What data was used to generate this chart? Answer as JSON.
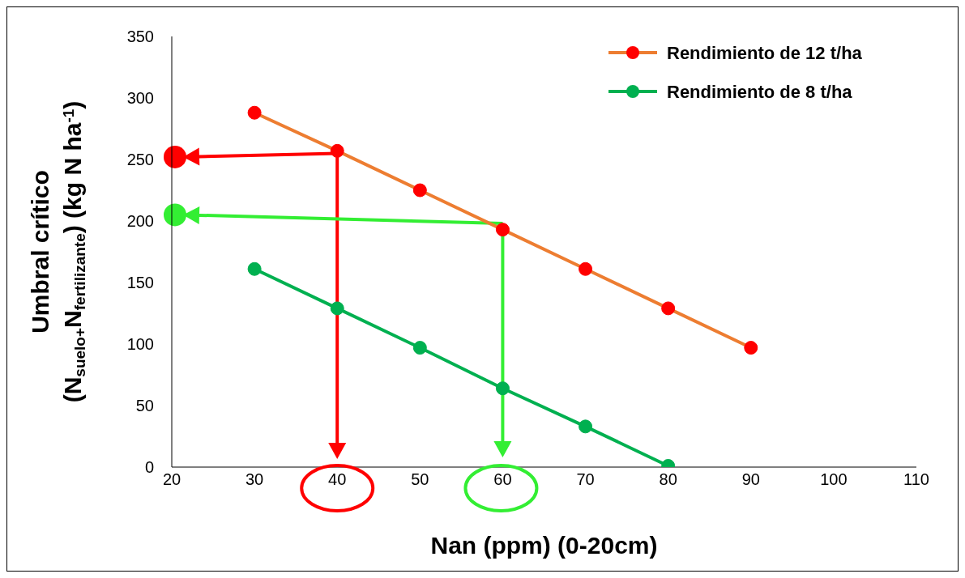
{
  "chart_data": {
    "type": "line",
    "xlabel": "Nan (ppm) (0-20cm)",
    "ylabel": "Umbral crítico\n(N$_{suelo+}$N$_{fertilizante}$) (kg N ha$^{-1}$)",
    "x": [
      30,
      40,
      50,
      60,
      70,
      80,
      90
    ],
    "series": [
      {
        "name": "Rendimiento de 12 t/ha",
        "color": "#ed7d31",
        "colors": [
          "#ff0000",
          "#ff0000",
          "#ff0000",
          "#ff0000",
          "#ff0000",
          "#ff0000",
          "#ff0000"
        ],
        "values": [
          288,
          257,
          225,
          193,
          161,
          129,
          97
        ]
      },
      {
        "name": "Rendimiento de 8 t/ha",
        "color": "#00b050",
        "colors": [
          "#00b050",
          "#00b050",
          "#00b050",
          "#00b050",
          "#00b050",
          "#00b050",
          null
        ],
        "values": [
          161,
          129,
          97,
          64,
          33,
          1,
          null
        ]
      }
    ],
    "xlim": [
      20,
      110
    ],
    "xticks": [
      20,
      30,
      40,
      50,
      60,
      70,
      80,
      90,
      100,
      110
    ],
    "ylim": [
      0,
      350
    ],
    "yticks": [
      0,
      50,
      100,
      150,
      200,
      250,
      300,
      350
    ],
    "grid": false,
    "legend": "top right",
    "marker": "circle",
    "line_style": "solid"
  }
}
